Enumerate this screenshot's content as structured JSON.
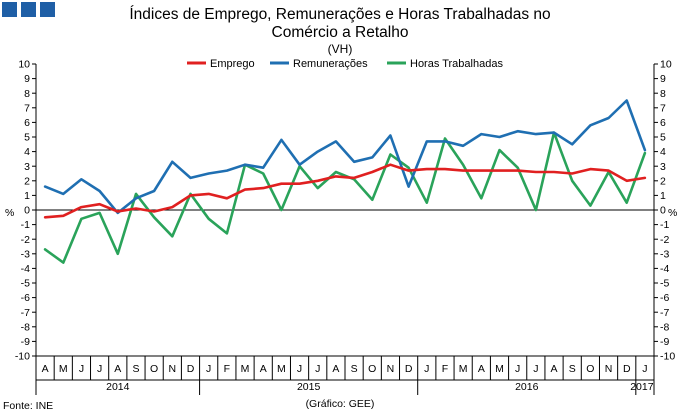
{
  "chart_data": {
    "type": "line",
    "title_line1": "Índices de Emprego, Remunerações e Horas Trabalhadas no",
    "title_line2": "Comércio a Retalho",
    "subtitle": "(VH)",
    "ylabel": "%",
    "ylim": [
      -10,
      10
    ],
    "yticks": [
      -10,
      -9,
      -8,
      -7,
      -6,
      -5,
      -4,
      -3,
      -2,
      -1,
      0,
      1,
      2,
      3,
      4,
      5,
      6,
      7,
      8,
      9,
      10
    ],
    "categories": [
      "A",
      "M",
      "J",
      "J",
      "A",
      "S",
      "O",
      "N",
      "D",
      "J",
      "F",
      "M",
      "A",
      "M",
      "J",
      "J",
      "A",
      "S",
      "O",
      "N",
      "D",
      "J",
      "F",
      "M",
      "A",
      "M",
      "J",
      "J",
      "A",
      "S",
      "O",
      "N",
      "D",
      "J"
    ],
    "years": [
      {
        "label": "2014",
        "start": 0,
        "end": 8
      },
      {
        "label": "2015",
        "start": 9,
        "end": 20
      },
      {
        "label": "2016",
        "start": 21,
        "end": 32
      },
      {
        "label": "2017",
        "start": 33,
        "end": 33
      }
    ],
    "series": [
      {
        "name": "Emprego",
        "color": "#e02020",
        "values": [
          -0.5,
          -0.4,
          0.2,
          0.4,
          -0.1,
          0.1,
          -0.1,
          0.2,
          1.0,
          1.1,
          0.8,
          1.4,
          1.5,
          1.8,
          1.8,
          2.0,
          2.3,
          2.2,
          2.6,
          3.1,
          2.7,
          2.8,
          2.8,
          2.7,
          2.7,
          2.7,
          2.7,
          2.6,
          2.6,
          2.5,
          2.8,
          2.7,
          2.0,
          2.2
        ]
      },
      {
        "name": "Remunerações",
        "color": "#1f6fb2",
        "values": [
          1.6,
          1.1,
          2.1,
          1.3,
          -0.2,
          0.8,
          1.3,
          3.3,
          2.2,
          2.5,
          2.7,
          3.1,
          2.9,
          4.8,
          3.1,
          4.0,
          4.7,
          3.3,
          3.6,
          5.1,
          1.6,
          4.7,
          4.7,
          4.4,
          5.2,
          5.0,
          5.4,
          5.2,
          5.3,
          4.5,
          5.8,
          6.3,
          7.5,
          4.1
        ]
      },
      {
        "name": "Horas Trabalhadas",
        "color": "#2aa35a",
        "values": [
          -2.7,
          -3.6,
          -0.6,
          -0.2,
          -3.0,
          1.1,
          -0.5,
          -1.8,
          1.1,
          -0.6,
          -1.6,
          3.1,
          2.5,
          0.0,
          3.0,
          1.5,
          2.6,
          2.1,
          0.7,
          3.8,
          2.9,
          0.5,
          4.9,
          3.1,
          0.8,
          4.1,
          2.9,
          0.0,
          5.3,
          2.0,
          0.3,
          2.6,
          0.5,
          3.9
        ]
      }
    ]
  },
  "source_label": "Fonte: INE",
  "credit_label": "(Gráfico: GEE)",
  "logo_colors": [
    "#1f5fa6",
    "#1f5fa6",
    "#1f5fa6"
  ]
}
